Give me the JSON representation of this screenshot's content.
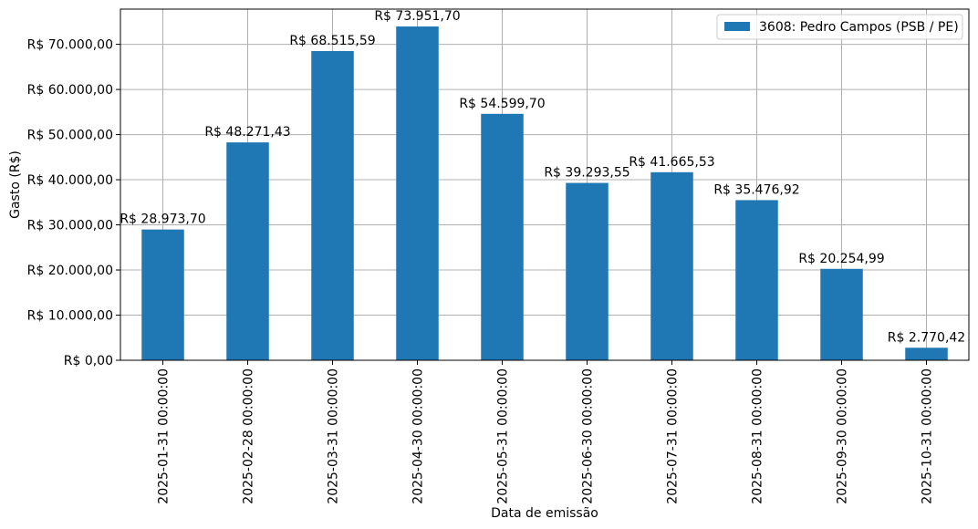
{
  "chart_data": {
    "type": "bar",
    "title": "",
    "xlabel": "Data de emissão",
    "ylabel": "Gasto (R$)",
    "ylim": [
      0,
      77800
    ],
    "grid": true,
    "legend_position": "top-right",
    "bar_color": "#1f77b4",
    "categories": [
      "2025-01-31 00:00:00",
      "2025-02-28 00:00:00",
      "2025-03-31 00:00:00",
      "2025-04-30 00:00:00",
      "2025-05-31 00:00:00",
      "2025-06-30 00:00:00",
      "2025-07-31 00:00:00",
      "2025-08-31 00:00:00",
      "2025-09-30 00:00:00",
      "2025-10-31 00:00:00"
    ],
    "series": [
      {
        "name": "3608: Pedro Campos (PSB / PE)",
        "values": [
          28973.7,
          48271.43,
          68515.59,
          73951.7,
          54599.7,
          39293.55,
          41665.53,
          35476.92,
          20254.99,
          2770.42
        ],
        "labels": [
          "R$ 28.973,70",
          "R$ 48.271,43",
          "R$ 68.515,59",
          "R$ 73.951,70",
          "R$ 54.599,70",
          "R$ 39.293,55",
          "R$ 41.665,53",
          "R$ 35.476,92",
          "R$ 20.254,99",
          "R$ 2.770,42"
        ]
      }
    ],
    "yticks": [
      0,
      10000,
      20000,
      30000,
      40000,
      50000,
      60000,
      70000
    ],
    "ytick_labels": [
      "R$ 0,00",
      "R$ 10.000,00",
      "R$ 20.000,00",
      "R$ 30.000,00",
      "R$ 40.000,00",
      "R$ 50.000,00",
      "R$ 60.000,00",
      "R$ 70.000,00"
    ]
  }
}
